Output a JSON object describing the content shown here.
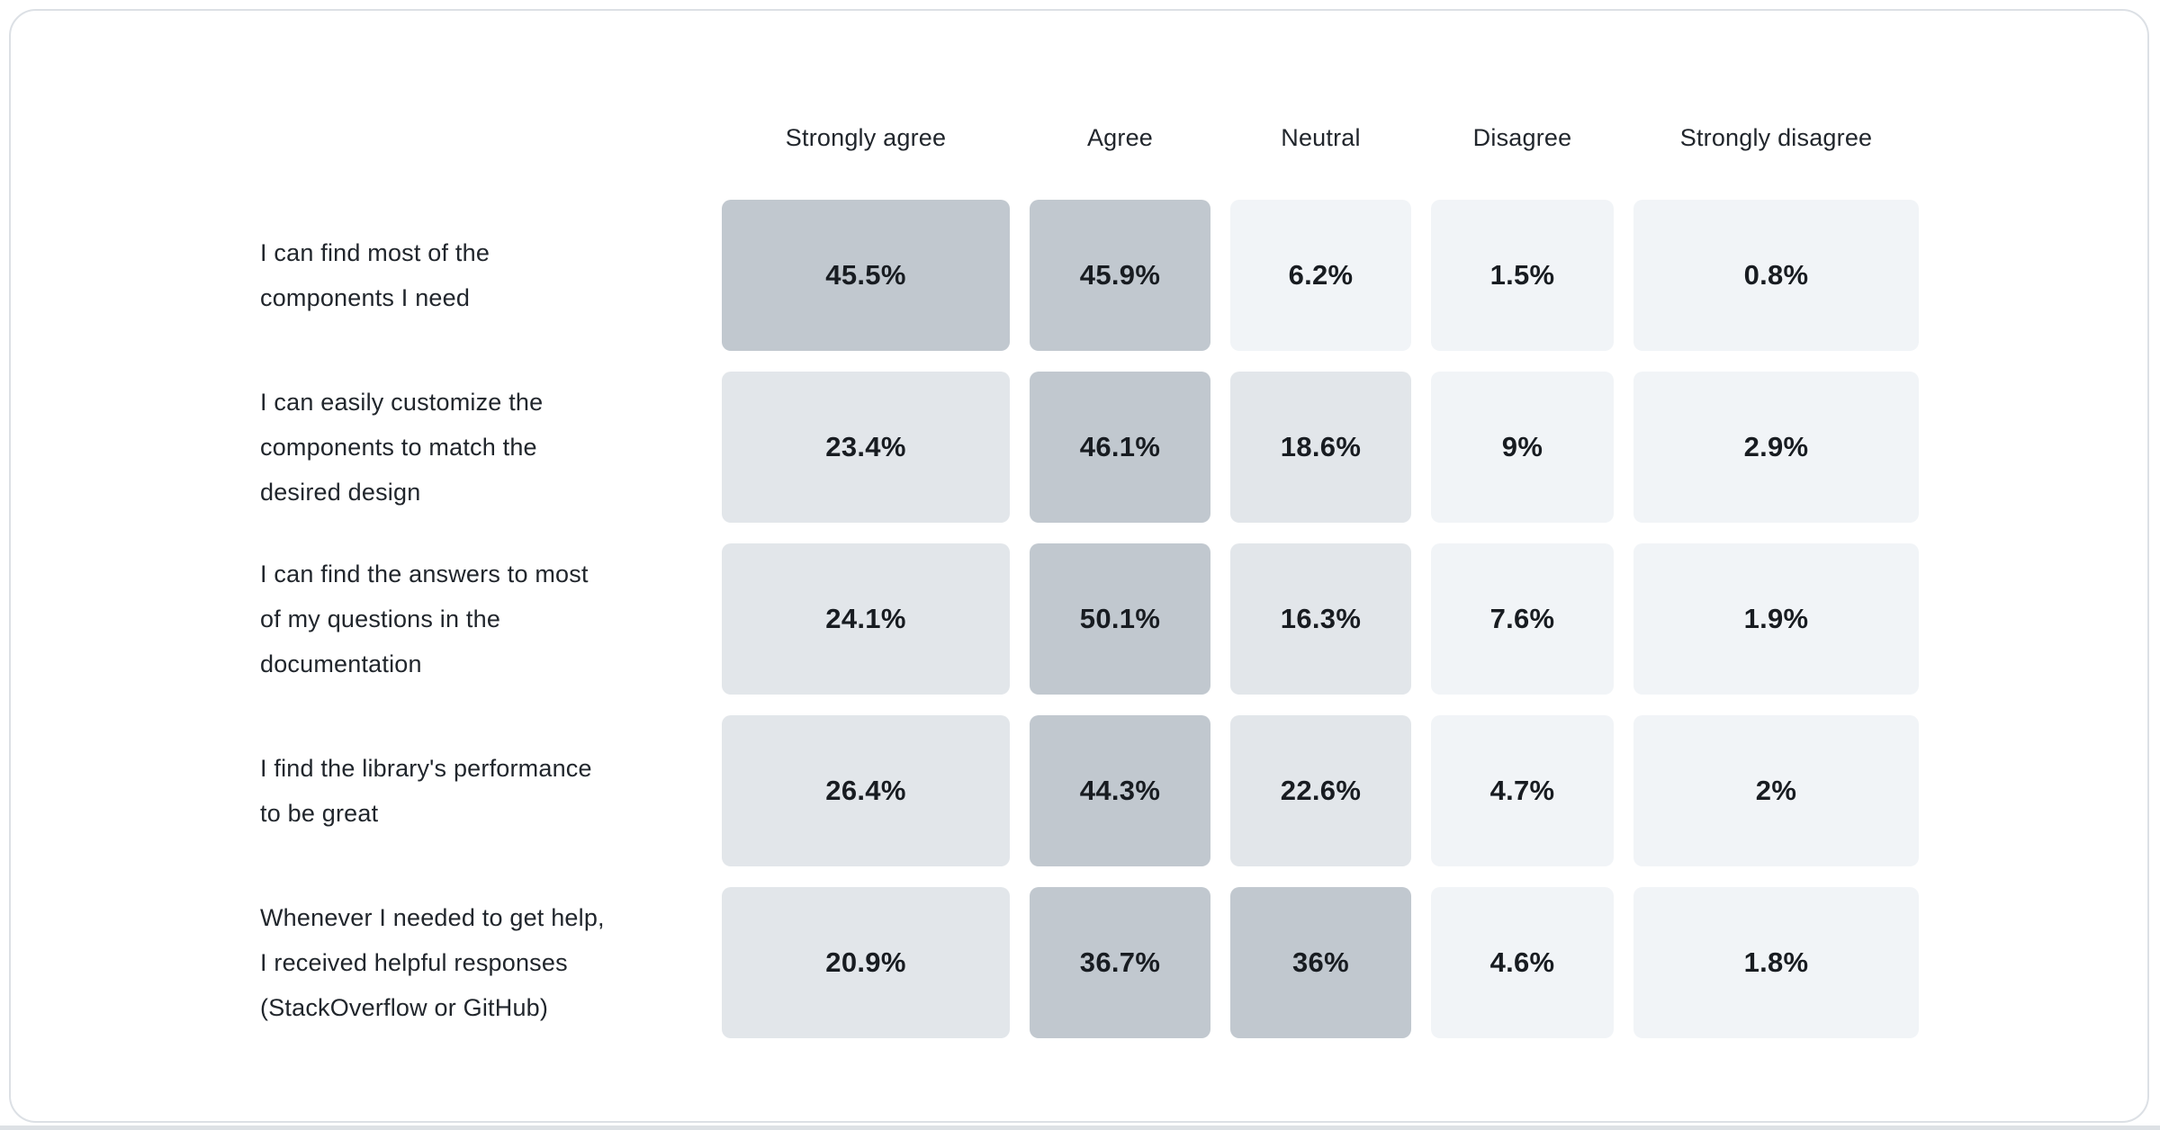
{
  "page": {
    "background": "#ffffff",
    "bottom_strip_color": "#dde1e5",
    "card_background": "#ffffff",
    "card_border_color": "#dce0e5"
  },
  "chart_data": {
    "type": "heatmap",
    "title": "",
    "columns": [
      "Strongly agree",
      "Agree",
      "Neutral",
      "Disagree",
      "Strongly disagree"
    ],
    "rows": [
      {
        "label": "I can find most of the\ncomponents I need",
        "values": [
          45.5,
          45.9,
          6.2,
          1.5,
          0.8
        ],
        "values_display": [
          "45.5%",
          "45.9%",
          "6.2%",
          "1.5%",
          "0.8%"
        ]
      },
      {
        "label": "I can easily customize the\ncomponents to match the\ndesired design",
        "values": [
          23.4,
          46.1,
          18.6,
          9,
          2.9
        ],
        "values_display": [
          "23.4%",
          "46.1%",
          "18.6%",
          "9%",
          "2.9%"
        ]
      },
      {
        "label": "I can find the answers to most\nof my questions in the\ndocumentation",
        "values": [
          24.1,
          50.1,
          16.3,
          7.6,
          1.9
        ],
        "values_display": [
          "24.1%",
          "50.1%",
          "16.3%",
          "7.6%",
          "1.9%"
        ]
      },
      {
        "label": "I find the library's performance\nto be great",
        "values": [
          26.4,
          44.3,
          22.6,
          4.7,
          2
        ],
        "values_display": [
          "26.4%",
          "44.3%",
          "22.6%",
          "4.7%",
          "2%"
        ]
      },
      {
        "label": "Whenever I needed to get help,\nI received helpful responses\n(StackOverflow or GitHub)",
        "values": [
          20.9,
          36.7,
          36,
          4.6,
          1.8
        ],
        "values_display": [
          "20.9%",
          "36.7%",
          "36%",
          "4.6%",
          "1.8%"
        ]
      }
    ],
    "unit": "%",
    "color_scale": {
      "bins": [
        {
          "min": 30,
          "color": "#c1c8cf",
          "label": "high"
        },
        {
          "min": 10,
          "color": "#e2e6ea",
          "label": "medium"
        },
        {
          "min": 0,
          "color": "#f1f4f7",
          "label": "low"
        }
      ]
    },
    "cell_text_color": "#181c21",
    "label_text_color": "#21262c",
    "legend_position": "none",
    "grid": false
  }
}
